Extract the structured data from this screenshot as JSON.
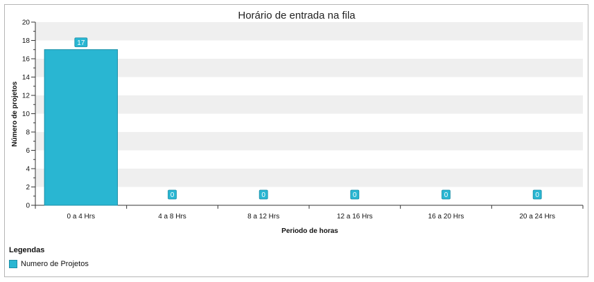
{
  "chart_data": {
    "type": "bar",
    "title": "Horário de entrada na fila",
    "xlabel": "Periodo de horas",
    "ylabel": "Número de projetos",
    "categories": [
      "0 a 4 Hrs",
      "4 a 8 Hrs",
      "8 a 12 Hrs",
      "12 a 16 Hrs",
      "16 a 20 Hrs",
      "20 a 24 Hrs"
    ],
    "series": [
      {
        "name": "Numero de Projetos",
        "values": [
          17,
          0,
          0,
          0,
          0,
          0
        ],
        "color": "#29b6d2"
      }
    ],
    "ylim": [
      0,
      20
    ],
    "yticks": [
      0,
      2,
      4,
      6,
      8,
      10,
      12,
      14,
      16,
      18,
      20
    ],
    "grid": "alternating-bands",
    "legend_position": "bottom-left"
  },
  "legend": {
    "title": "Legendas",
    "items": [
      "Numero de Projetos"
    ]
  },
  "colors": {
    "bar": "#29b6d2",
    "bar_border": "#1c8ea6",
    "band": "#efefef"
  }
}
